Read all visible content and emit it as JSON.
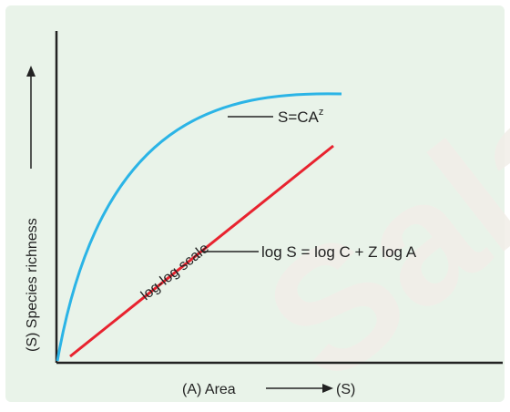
{
  "diagram": {
    "y_axis_label": "(S) Species richness",
    "x_axis_label": "(A) Area",
    "x_axis_end_label": "(S)",
    "curve_label_base": "S=CA",
    "curve_label_exponent": "z",
    "line_label": "log S = log C + Z log A",
    "scale_label": "log-log scale",
    "watermark": "Sala"
  },
  "colors": {
    "background": "#e9f3e9",
    "axis": "#222222",
    "curve": "#2bb4e6",
    "line": "#e8232f",
    "text": "#222222",
    "watermark": "#f2eee8"
  }
}
